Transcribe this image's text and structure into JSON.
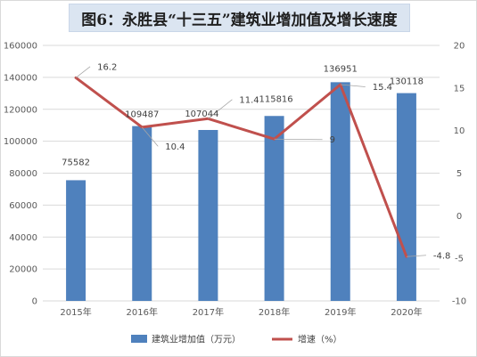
{
  "title": "图6：永胜县“十三五”建筑业增加值及增长速度",
  "chart_data": {
    "type": "bar",
    "categories": [
      "2015年",
      "2016年",
      "2017年",
      "2018年",
      "2019年",
      "2020年"
    ],
    "series": [
      {
        "name": "建筑业增加值（万元）",
        "type": "bar",
        "axis": "left",
        "color": "#4f81bd",
        "values": [
          75582,
          109487,
          107044,
          115816,
          136951,
          130118
        ],
        "labels": [
          "75582",
          "109487",
          "107044",
          "115816",
          "136951",
          "130118"
        ]
      },
      {
        "name": "增速（%）",
        "type": "line",
        "axis": "right",
        "color": "#c0504d",
        "values": [
          16.2,
          10.4,
          11.4,
          9,
          15.4,
          -4.8
        ],
        "labels": [
          "16.2",
          "10.4",
          "11.4",
          "9",
          "15.4",
          "-4.8"
        ]
      }
    ],
    "ylim_left": [
      0,
      160000
    ],
    "yticks_left": [
      "0",
      "20000",
      "40000",
      "60000",
      "80000",
      "100000",
      "120000",
      "140000",
      "160000"
    ],
    "ylim_right": [
      -10,
      20
    ],
    "yticks_right": [
      "-10",
      "-5",
      "0",
      "5",
      "10",
      "15",
      "20"
    ],
    "grid": true,
    "legend_position": "bottom"
  }
}
